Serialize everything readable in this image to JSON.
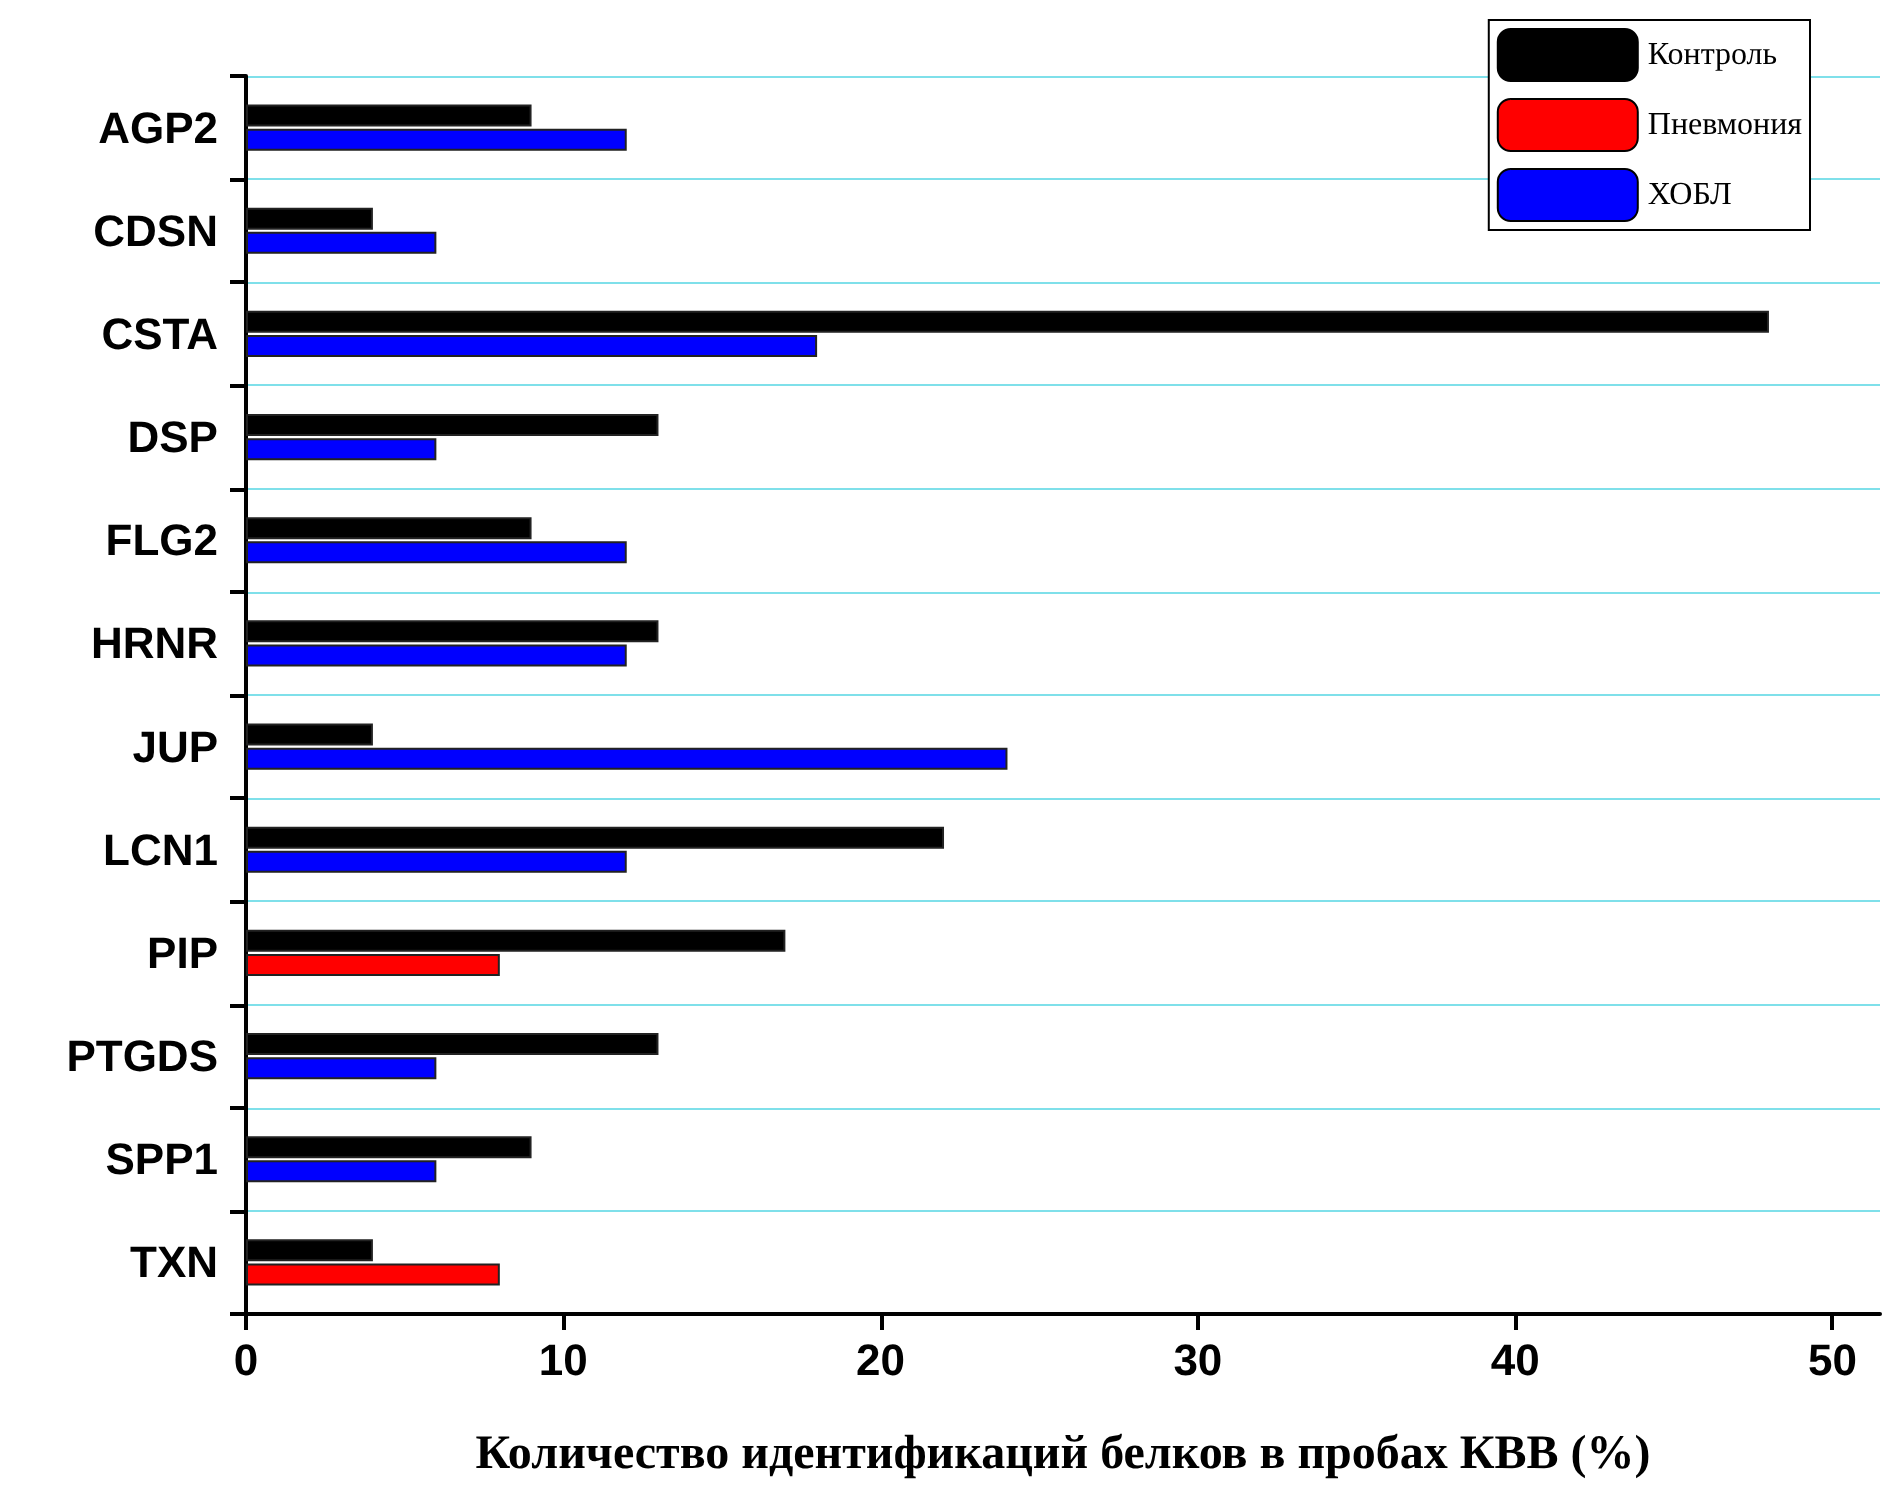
{
  "chart_data": {
    "type": "bar",
    "orientation": "horizontal",
    "xlabel": "Количество идентификаций белков в пробах КВВ (%)",
    "categories": [
      "AGP2",
      "CDSN",
      "CSTA",
      "DSP",
      "FLG2",
      "HRNR",
      "JUP",
      "LCN1",
      "PIP",
      "PTGDS",
      "SPP1",
      "TXN"
    ],
    "series": [
      {
        "name": "Контроль",
        "color": "#000000",
        "values": [
          9,
          4,
          48,
          13,
          9,
          13,
          4,
          22,
          17,
          13,
          9,
          4
        ]
      },
      {
        "name": "Пневмония",
        "color": "#ff0000",
        "values": [
          null,
          null,
          null,
          null,
          null,
          null,
          null,
          null,
          8,
          null,
          null,
          8
        ]
      },
      {
        "name": "ХОБЛ",
        "color": "#0000ff",
        "values": [
          12,
          6,
          18,
          6,
          12,
          12,
          24,
          12,
          null,
          6,
          6,
          null
        ]
      }
    ],
    "xlim": [
      0,
      51.5
    ],
    "xticks": [
      0,
      10,
      20,
      30,
      40,
      50
    ],
    "grid": "y",
    "legend": "top right"
  }
}
